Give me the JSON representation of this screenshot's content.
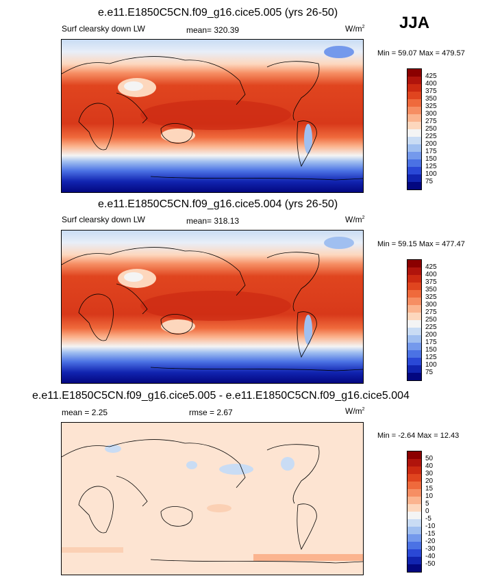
{
  "season": "JJA",
  "units_label": "W/m",
  "units_sup": "2",
  "panels": [
    {
      "title": "e.e11.E1850C5CN.f09_g16.cice5.005 (yrs 26-50)",
      "variable": "Surf clearsky down LW",
      "stat": "mean= 320.39",
      "minmax": "Min =  59.07 Max = 479.57"
    },
    {
      "title": "e.e11.E1850C5CN.f09_g16.cice5.004 (yrs 26-50)",
      "variable": "Surf clearsky down LW",
      "stat": "mean= 318.13",
      "minmax": "Min =  59.15 Max = 477.47"
    },
    {
      "title": "e.e11.E1850C5CN.f09_g16.cice5.005 - e.e11.E1850C5CN.f09_g16.cice5.004",
      "stat1": "mean =   2.25",
      "stat2": "rmse =   2.67",
      "minmax": "Min =  -2.64 Max =  12.43"
    }
  ],
  "colorbar_abs": {
    "ticks": [
      "425",
      "400",
      "375",
      "350",
      "325",
      "300",
      "275",
      "250",
      "225",
      "200",
      "175",
      "150",
      "125",
      "100",
      "75"
    ],
    "colors": [
      "#8b0000",
      "#b0140c",
      "#cc2a12",
      "#e0451f",
      "#ef6a3c",
      "#f68e63",
      "#fbb48f",
      "#fdd7bd",
      "#f4f4f4",
      "#c9dcf4",
      "#a0bff0",
      "#7499ec",
      "#4b72e4",
      "#2a48d6",
      "#1124b0",
      "#030780"
    ]
  },
  "colorbar_diff": {
    "ticks": [
      "50",
      "40",
      "30",
      "20",
      "15",
      "10",
      "5",
      "0",
      "-5",
      "-10",
      "-15",
      "-20",
      "-30",
      "-40",
      "-50"
    ],
    "colors": [
      "#8b0000",
      "#b0140c",
      "#cc2a12",
      "#e0451f",
      "#ef6a3c",
      "#f68e63",
      "#fbb48f",
      "#fdd7bd",
      "#f4f4f4",
      "#c9dcf4",
      "#a0bff0",
      "#7499ec",
      "#4b72e4",
      "#2a48d6",
      "#1124b0",
      "#030780"
    ]
  }
}
